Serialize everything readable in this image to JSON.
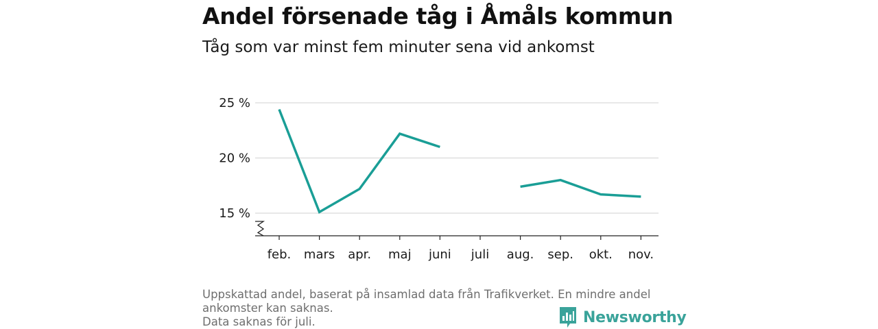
{
  "title": "Andel försenade tåg i Åmåls kommun",
  "subtitle": "Tåg som var minst fem minuter sena vid ankomst",
  "footnote": {
    "line1": "Uppskattad andel, baserat på insamlad data från Trafikverket. En mindre andel",
    "line2": "ankomster kan saknas.",
    "line3": "Data saknas för juli."
  },
  "brand": {
    "name": "Newsworthy",
    "color": "#3aa39a"
  },
  "chart_data": {
    "type": "line",
    "categories": [
      "feb.",
      "mars",
      "apr.",
      "maj",
      "juni",
      "juli",
      "aug.",
      "sep.",
      "okt.",
      "nov."
    ],
    "series": [
      {
        "values": [
          24.4,
          15.1,
          17.2,
          22.2,
          21.0,
          null,
          17.4,
          18.0,
          16.7,
          16.5
        ],
        "color": "#1a9e96"
      }
    ],
    "y_ticks": [
      15,
      20,
      25
    ],
    "y_tick_labels": [
      "15 %",
      "20 %",
      "25 %"
    ],
    "ylim": [
      13,
      25
    ],
    "y_axis_break": true,
    "grid": true
  }
}
